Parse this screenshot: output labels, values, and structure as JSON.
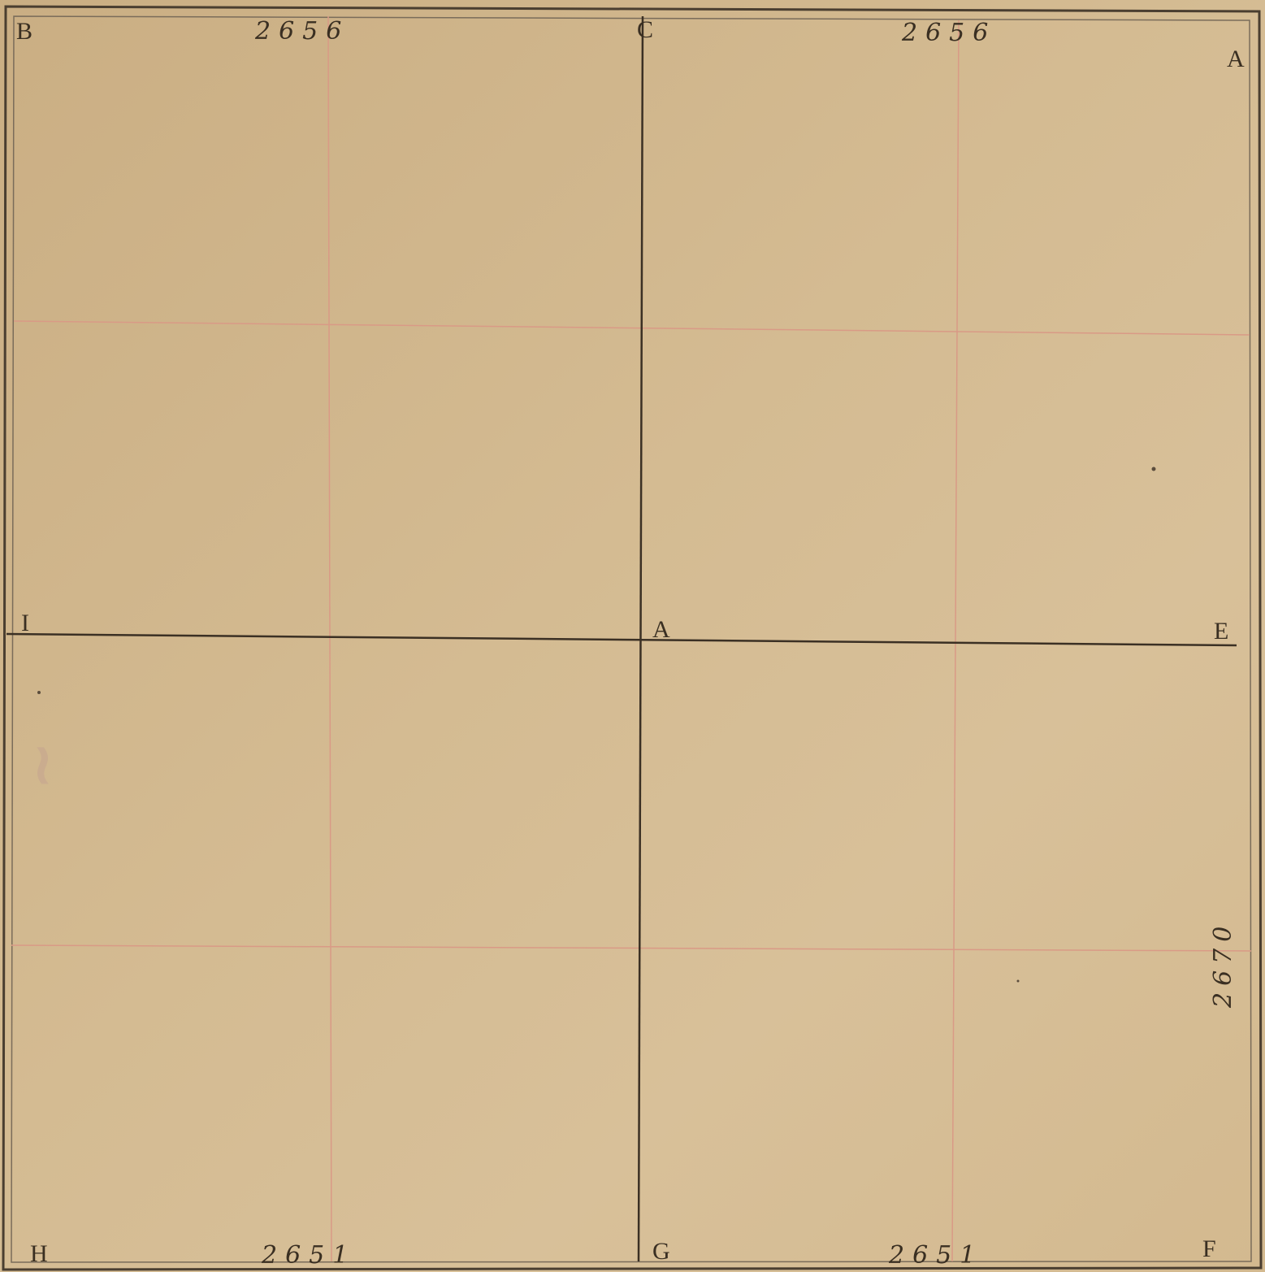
{
  "sheet": {
    "corners": {
      "top_left": "B",
      "top_center": "C",
      "top_right": "A",
      "mid_left": "I",
      "center": "A",
      "mid_right": "E",
      "bottom_left": "H",
      "bottom_center": "G",
      "bottom_right": "F"
    },
    "numbers": {
      "top_left_number": "2656",
      "top_right_number": "2656",
      "bottom_left_number": "2651",
      "bottom_right_number": "2651",
      "right_side_number": "2670"
    }
  },
  "colors": {
    "paper": "#d4bb92",
    "ink": "#3a2f22",
    "grid_red": "#d99a86"
  }
}
